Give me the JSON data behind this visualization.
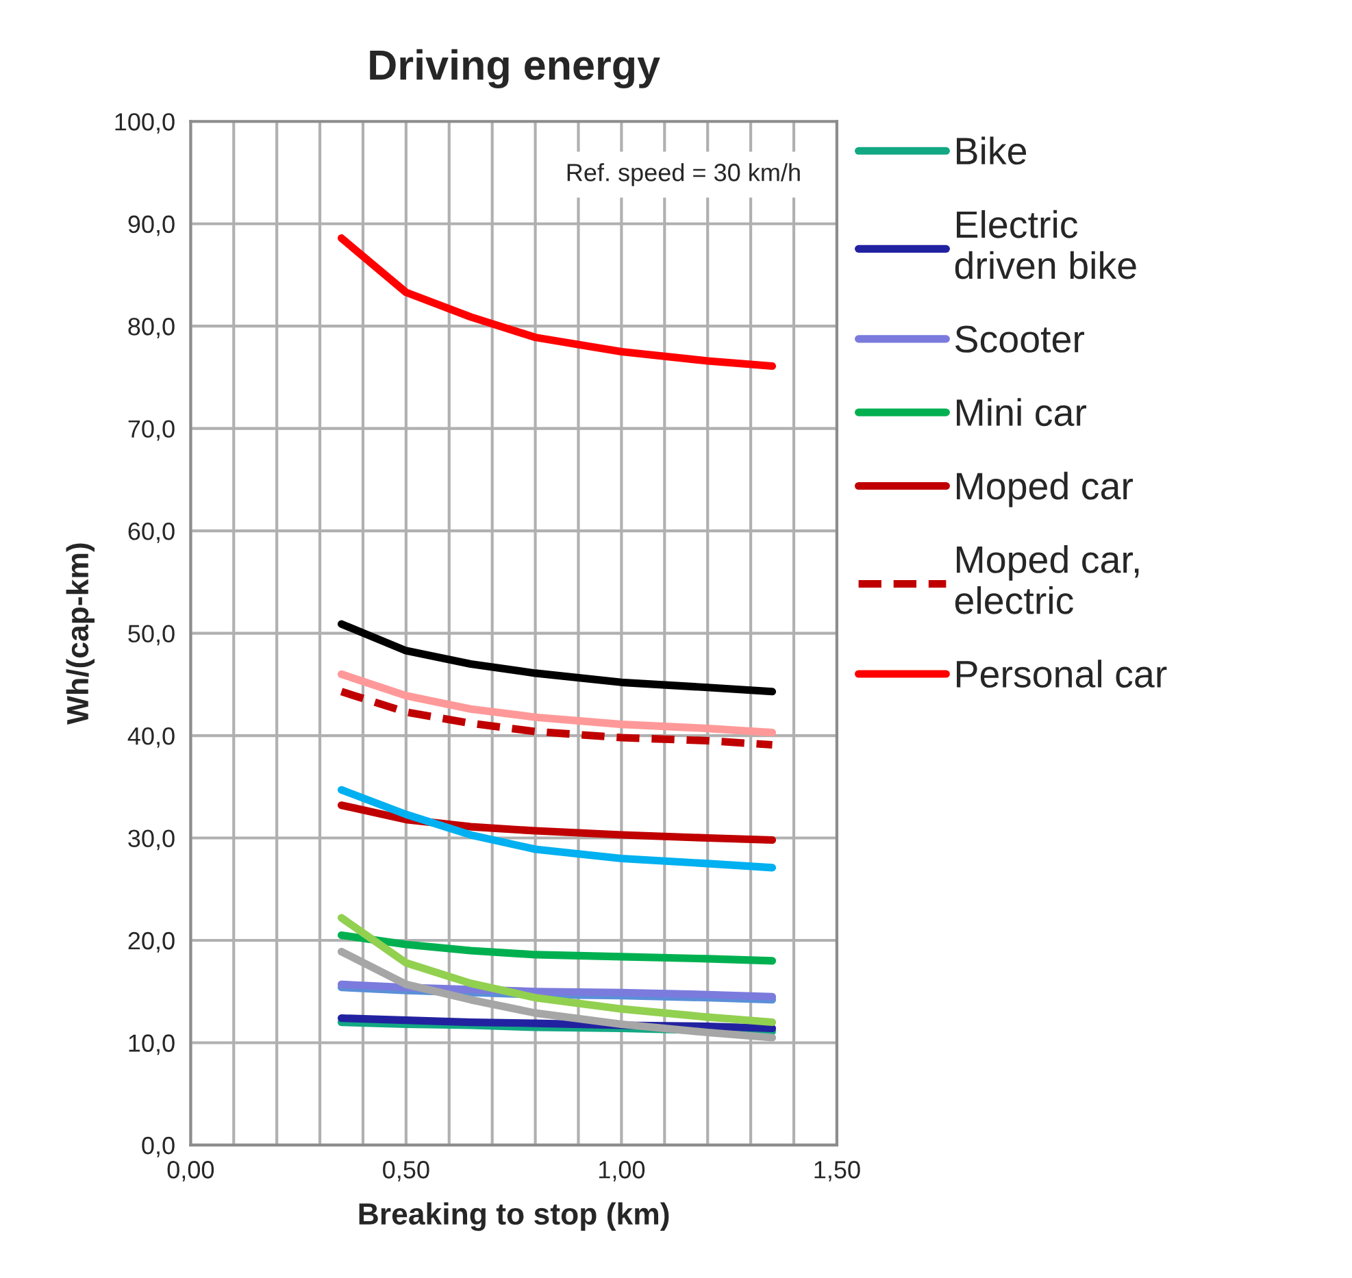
{
  "chart_data": {
    "type": "line",
    "title": "Driving energy",
    "xlabel": "Breaking to stop (km)",
    "ylabel": "Wh/(cap-km)",
    "annotations": [
      "Ref. speed = 30 km/h"
    ],
    "x": [
      0.35,
      0.5,
      0.65,
      0.8,
      1.0,
      1.2,
      1.35
    ],
    "series": [
      {
        "name": "Bike",
        "color": "#12a883",
        "values": [
          12.0,
          11.8,
          11.7,
          11.5,
          11.4,
          11.2,
          11.1
        ]
      },
      {
        "name": "Electric\ndriven bike",
        "color": "#2222a0",
        "values": [
          12.4,
          12.2,
          12.0,
          11.9,
          11.7,
          11.6,
          11.4
        ]
      },
      {
        "color": "#5b8fd8",
        "values": [
          15.4,
          15.1,
          14.9,
          14.7,
          14.6,
          14.4,
          14.2
        ]
      },
      {
        "name": "Scooter",
        "color": "#7b7bdd",
        "values": [
          15.7,
          15.4,
          15.2,
          15.0,
          14.9,
          14.7,
          14.5
        ]
      },
      {
        "name": "Mini car",
        "color": "#00b050",
        "values": [
          20.5,
          19.6,
          19.0,
          18.6,
          18.4,
          18.2,
          18.0
        ]
      },
      {
        "name": "Moped car",
        "color": "#c00000",
        "values": [
          33.2,
          31.8,
          31.1,
          30.7,
          30.3,
          30.0,
          29.8
        ]
      },
      {
        "name": "Moped car,\nelectric",
        "color": "#c00000",
        "line_style": "dashed",
        "values": [
          44.3,
          42.3,
          41.2,
          40.4,
          39.8,
          39.5,
          39.1
        ]
      },
      {
        "color": "#ff9999",
        "values": [
          46.0,
          43.9,
          42.6,
          41.8,
          41.1,
          40.7,
          40.3
        ]
      },
      {
        "color": "#000000",
        "values": [
          50.9,
          48.3,
          47.0,
          46.1,
          45.2,
          44.7,
          44.3
        ]
      },
      {
        "name": "Personal car",
        "color": "#ff0000",
        "values": [
          88.6,
          83.3,
          80.9,
          78.9,
          77.5,
          76.6,
          76.1
        ]
      },
      {
        "color": "#00b0f0",
        "values": [
          34.7,
          32.3,
          30.3,
          28.9,
          28.0,
          27.5,
          27.1
        ]
      },
      {
        "color": "#92d050",
        "values": [
          22.2,
          17.8,
          15.8,
          14.4,
          13.3,
          12.5,
          12.0
        ]
      },
      {
        "color": "#a6a6a6",
        "values": [
          18.9,
          15.7,
          14.2,
          12.9,
          11.8,
          11.0,
          10.5
        ]
      }
    ],
    "xlim": [
      0,
      1.5
    ],
    "xticks": [
      {
        "value": 0,
        "label": "0,00"
      },
      {
        "value": 0.1,
        "label": null
      },
      {
        "value": 0.2,
        "label": null
      },
      {
        "value": 0.3,
        "label": null
      },
      {
        "value": 0.4,
        "label": null
      },
      {
        "value": 0.5,
        "label": "0,50"
      },
      {
        "value": 0.6,
        "label": null
      },
      {
        "value": 0.7,
        "label": null
      },
      {
        "value": 0.8,
        "label": null
      },
      {
        "value": 0.9,
        "label": null
      },
      {
        "value": 1.0,
        "label": "1,00"
      },
      {
        "value": 1.1,
        "label": null
      },
      {
        "value": 1.2,
        "label": null
      },
      {
        "value": 1.3,
        "label": null
      },
      {
        "value": 1.4,
        "label": null
      },
      {
        "value": 1.5,
        "label": "1,50"
      }
    ],
    "ylim": [
      0,
      100
    ],
    "yticks": [
      {
        "value": 0,
        "label": "0,0"
      },
      {
        "value": 10,
        "label": "10,0"
      },
      {
        "value": 20,
        "label": "20,0"
      },
      {
        "value": 30,
        "label": "30,0"
      },
      {
        "value": 40,
        "label": "40,0"
      },
      {
        "value": 50,
        "label": "50,0"
      },
      {
        "value": 60,
        "label": "60,0"
      },
      {
        "value": 70,
        "label": "70,0"
      },
      {
        "value": 80,
        "label": "80,0"
      },
      {
        "value": 90,
        "label": "90,0"
      },
      {
        "value": 100,
        "label": "100,0"
      }
    ],
    "grid": true,
    "legend": "right",
    "line_style": "solid",
    "marker": "none"
  }
}
